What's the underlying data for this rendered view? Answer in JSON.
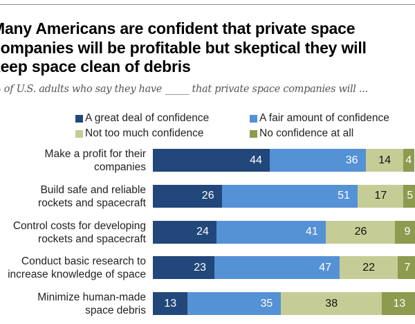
{
  "title_lines": [
    "Many Americans are confident that private space",
    "companies will be profitable but skeptical they will",
    "keep space clean of debris"
  ],
  "subtitle": "% of U.S. adults who say they have _____ that private space companies will ...",
  "chart_data": {
    "type": "bar",
    "orientation": "horizontal",
    "stacked": true,
    "xlim": [
      0,
      100
    ],
    "legend_placement": "top",
    "categories": [
      "Make a profit for their companies",
      "Build safe and reliable rockets and spacecraft",
      "Control costs for developing rockets and spacecraft",
      "Conduct basic research to increase knowledge of space",
      "Minimize human-made space debris"
    ],
    "category_lines": [
      [
        "Make a profit for their",
        "companies"
      ],
      [
        "Build safe and reliable",
        "rockets and spacecraft"
      ],
      [
        "Control costs for developing",
        "rockets and spacecraft"
      ],
      [
        "Conduct basic research to",
        "increase knowledge of space"
      ],
      [
        "Minimize human-made",
        "space debris"
      ]
    ],
    "series": [
      {
        "name": "A great deal of confidence",
        "color": "#22477a",
        "values": [
          44,
          26,
          24,
          23,
          13
        ]
      },
      {
        "name": "A fair amount of confidence",
        "color": "#5591d5",
        "values": [
          36,
          51,
          41,
          47,
          35
        ]
      },
      {
        "name": "Not too much confidence",
        "color": "#c6cc95",
        "values": [
          14,
          17,
          26,
          22,
          38
        ]
      },
      {
        "name": "No confidence at all",
        "color": "#8c9b4f",
        "values": [
          4,
          5,
          9,
          7,
          13
        ]
      }
    ]
  }
}
